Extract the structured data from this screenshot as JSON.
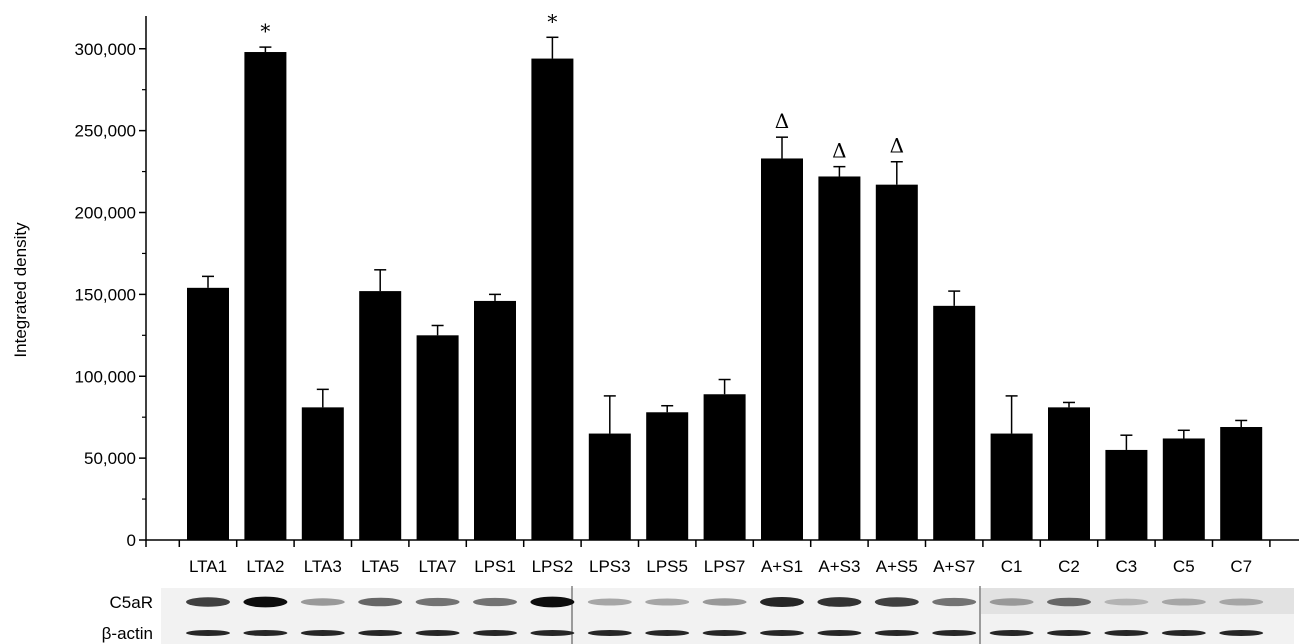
{
  "chart_data": {
    "type": "bar",
    "ylabel": "Integrated density",
    "xlabel": "",
    "ylim": [
      0,
      320000
    ],
    "yticks": [
      {
        "value": 0,
        "label": "0"
      },
      {
        "value": 50000,
        "label": "50,000"
      },
      {
        "value": 100000,
        "label": "100,000"
      },
      {
        "value": 150000,
        "label": "150,000"
      },
      {
        "value": 200000,
        "label": "200,000"
      },
      {
        "value": 250000,
        "label": "250,000"
      },
      {
        "value": 300000,
        "label": "300,000"
      }
    ],
    "categories": [
      "LTA1",
      "LTA2",
      "LTA3",
      "LTA5",
      "LTA7",
      "LPS1",
      "LPS2",
      "LPS3",
      "LPS5",
      "LPS7",
      "A+S1",
      "A+S3",
      "A+S5",
      "A+S7",
      "C1",
      "C2",
      "C3",
      "C5",
      "C7"
    ],
    "values": [
      154000,
      298000,
      81000,
      152000,
      125000,
      146000,
      294000,
      65000,
      78000,
      89000,
      233000,
      222000,
      217000,
      143000,
      65000,
      81000,
      55000,
      62000,
      69000
    ],
    "errors": [
      7000,
      3000,
      11000,
      13000,
      6000,
      4000,
      13000,
      23000,
      4000,
      9000,
      13000,
      6000,
      14000,
      9000,
      23000,
      3000,
      9000,
      5000,
      4000
    ],
    "annotations": [
      "",
      "*",
      "",
      "",
      "",
      "",
      "*",
      "",
      "",
      "",
      "Δ",
      "Δ",
      "Δ",
      "",
      "",
      "",
      "",
      "",
      ""
    ],
    "bar_color": "#000000",
    "grid": false,
    "legend": "none",
    "blot": {
      "rows": [
        {
          "label": "C5aR",
          "intensity": [
            0.75,
            0.95,
            0.4,
            0.6,
            0.55,
            0.55,
            0.95,
            0.35,
            0.35,
            0.4,
            0.85,
            0.8,
            0.75,
            0.55,
            0.4,
            0.6,
            0.3,
            0.35,
            0.35
          ]
        },
        {
          "label": "β-actin",
          "intensity": [
            0.85,
            0.85,
            0.85,
            0.85,
            0.85,
            0.85,
            0.85,
            0.85,
            0.85,
            0.85,
            0.85,
            0.85,
            0.85,
            0.85,
            0.85,
            0.85,
            0.85,
            0.85,
            0.85
          ]
        }
      ]
    }
  }
}
